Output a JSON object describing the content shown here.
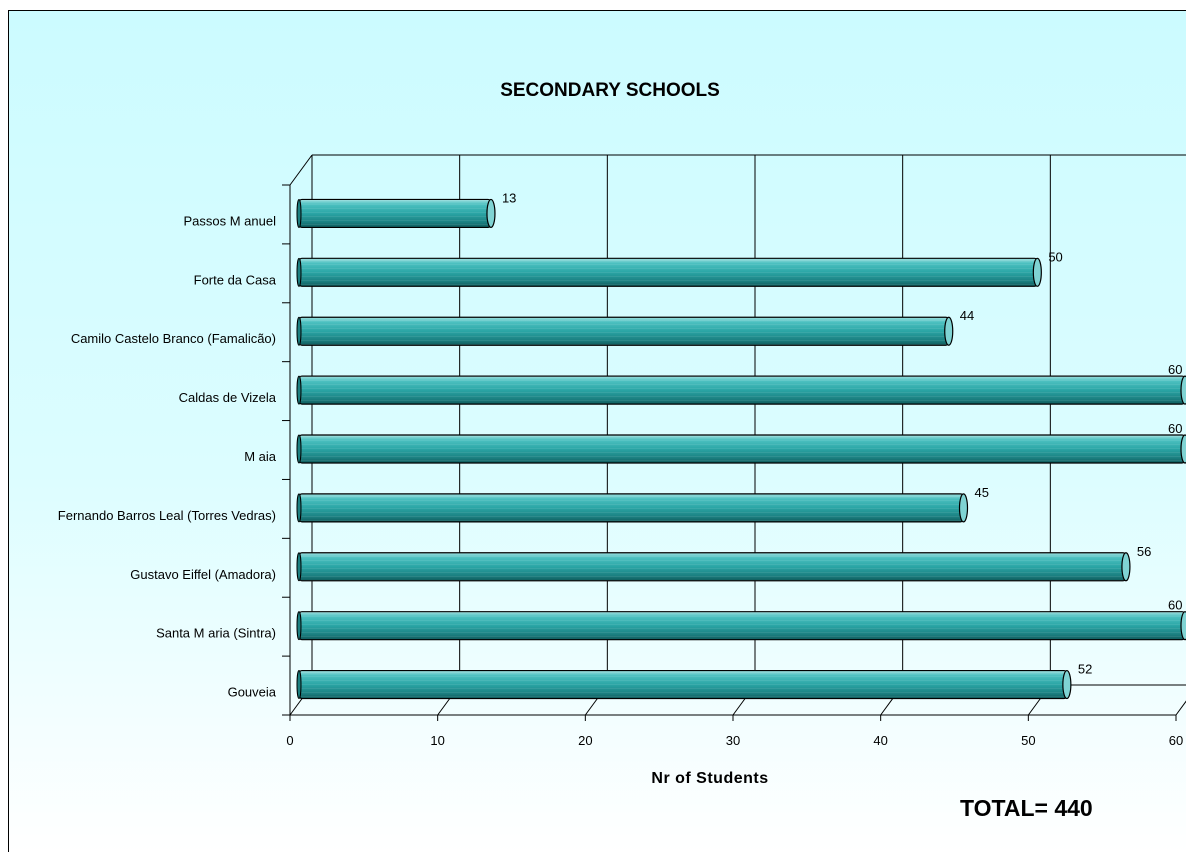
{
  "chart_data": {
    "type": "bar",
    "orientation": "horizontal",
    "title": "SECONDARY SCHOOLS",
    "xlabel": "Nr of Students",
    "ylabel": "",
    "categories": [
      "Passos M anuel",
      "Forte da Casa",
      "Camilo Castelo Branco (Famalicão)",
      "Caldas de Vizela",
      "M aia",
      "Fernando Barros Leal (Torres Vedras)",
      "Gustavo Eiffel (Amadora)",
      "Santa M aria (Sintra)",
      "Gouveia"
    ],
    "values": [
      13,
      50,
      44,
      60,
      60,
      45,
      56,
      60,
      52
    ],
    "data_labels": [
      "13",
      "50",
      "44",
      "60",
      "60",
      "45",
      "56",
      "60",
      "52"
    ],
    "xlim": [
      0,
      60
    ],
    "xticks": [
      "0",
      "10",
      "20",
      "30",
      "40",
      "50",
      "60"
    ],
    "grid": true,
    "legend": "none",
    "style": "3d-cylinder",
    "bar_color": "#2aa5a5"
  },
  "total_label": "TOTAL= 440"
}
